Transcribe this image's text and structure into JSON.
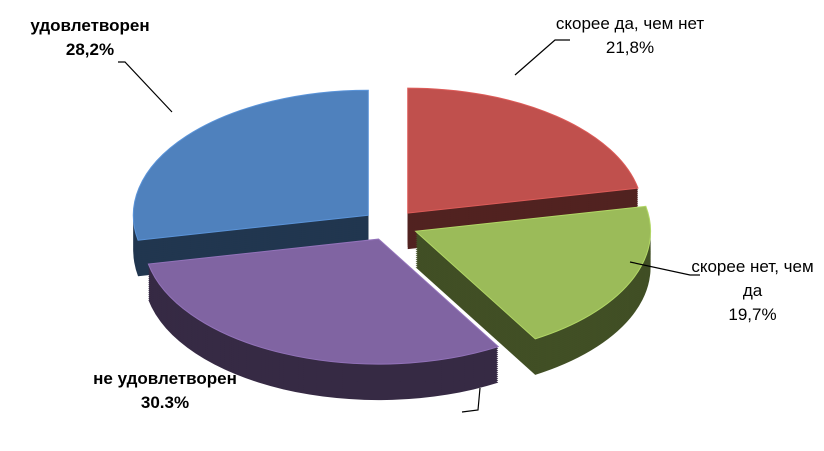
{
  "chart_data": {
    "type": "pie",
    "categories": [
      "скорее да, чем нет",
      "скорее нет, чем да",
      "не удовлетворен",
      "удовлетворен"
    ],
    "values": [
      21.8,
      19.7,
      30.3,
      28.2
    ],
    "value_labels": [
      "21,8%",
      "19,7%",
      "30.3%",
      "28,2%"
    ],
    "colors": [
      "#c0504d",
      "#9bbb59",
      "#8064a2",
      "#4f81bd"
    ]
  }
}
